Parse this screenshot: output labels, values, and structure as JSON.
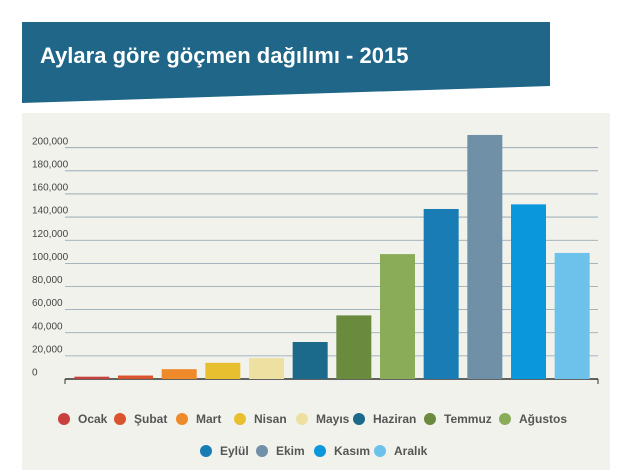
{
  "chart_data": {
    "type": "bar",
    "title": "Aylara göre göçmen dağılımı - 2015",
    "categories": [
      "Ocak",
      "Şubat",
      "Mart",
      "Nisan",
      "Mayıs",
      "Haziran",
      "Temmuz",
      "Ağustos",
      "Eylül",
      "Ekim",
      "Kasım",
      "Aralık"
    ],
    "values": [
      2000,
      3000,
      8500,
      14000,
      18000,
      32000,
      55000,
      108000,
      147000,
      211000,
      151000,
      109000
    ],
    "colors": [
      "#c9413d",
      "#d9542e",
      "#ee8a2a",
      "#e8c02f",
      "#eee0a0",
      "#1b6a8c",
      "#6a8a3e",
      "#8aab58",
      "#1a7cb5",
      "#7090a8",
      "#0a97dc",
      "#6cc2ea"
    ],
    "ylim": [
      0,
      230000
    ],
    "yticks": [
      0,
      {
        "value": 20000,
        "label": "20,000"
      },
      {
        "value": 40000,
        "label": "40,000"
      },
      {
        "value": 60000,
        "label": "60,000"
      },
      {
        "value": 80000,
        "label": "80,000"
      },
      {
        "value": 100000,
        "label": "100,000"
      },
      {
        "value": 120000,
        "label": "120,000"
      },
      {
        "value": 140000,
        "label": "140,000"
      },
      {
        "value": 160000,
        "label": "160,000"
      },
      {
        "value": 180000,
        "label": "180,000"
      },
      {
        "value": 200000,
        "label": "200,000"
      }
    ],
    "grid": true
  }
}
